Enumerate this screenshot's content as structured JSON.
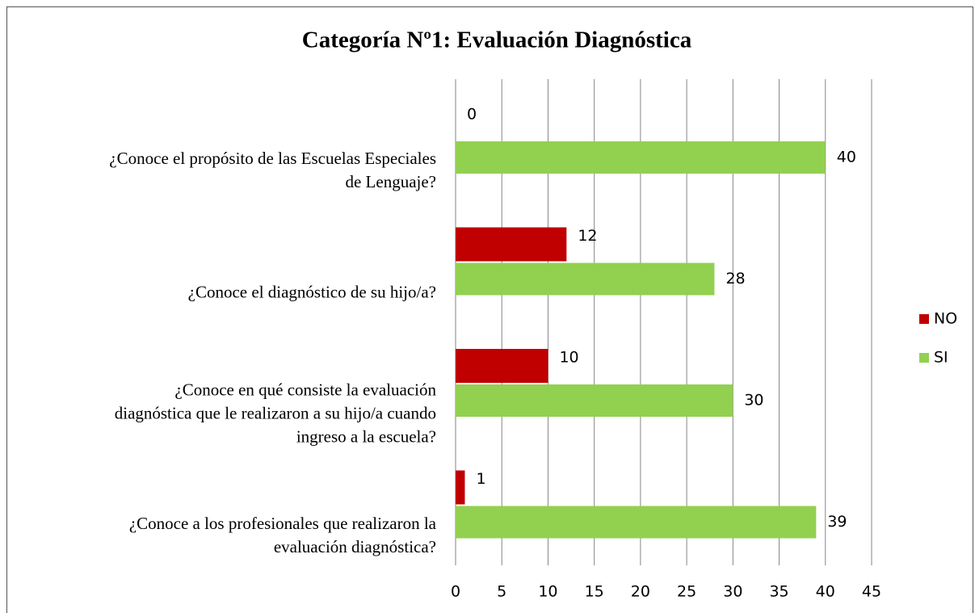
{
  "chart_data": {
    "type": "hbar",
    "title": "Categoría Nº1: Evaluación Diagnóstica",
    "categories": [
      "¿Conoce el propósito de las Escuelas Especiales\nde Lenguaje?",
      "¿Conoce el diagnóstico de su hijo/a?",
      "¿Conoce en qué consiste la evaluación\ndiagnóstica que le realizaron a su hijo/a cuando\ningreso a la escuela?",
      "¿Conoce a los profesionales que realizaron la\nevaluación diagnóstica?"
    ],
    "series": [
      {
        "name": "NO",
        "color": "#c00000",
        "values": [
          0,
          12,
          10,
          1
        ]
      },
      {
        "name": "SI",
        "color": "#92d050",
        "values": [
          40,
          28,
          30,
          39
        ]
      }
    ],
    "xlim": [
      0,
      45
    ],
    "xticks": [
      0,
      5,
      10,
      15,
      20,
      25,
      30,
      35,
      40,
      45
    ],
    "grid": true,
    "legend": "right"
  }
}
